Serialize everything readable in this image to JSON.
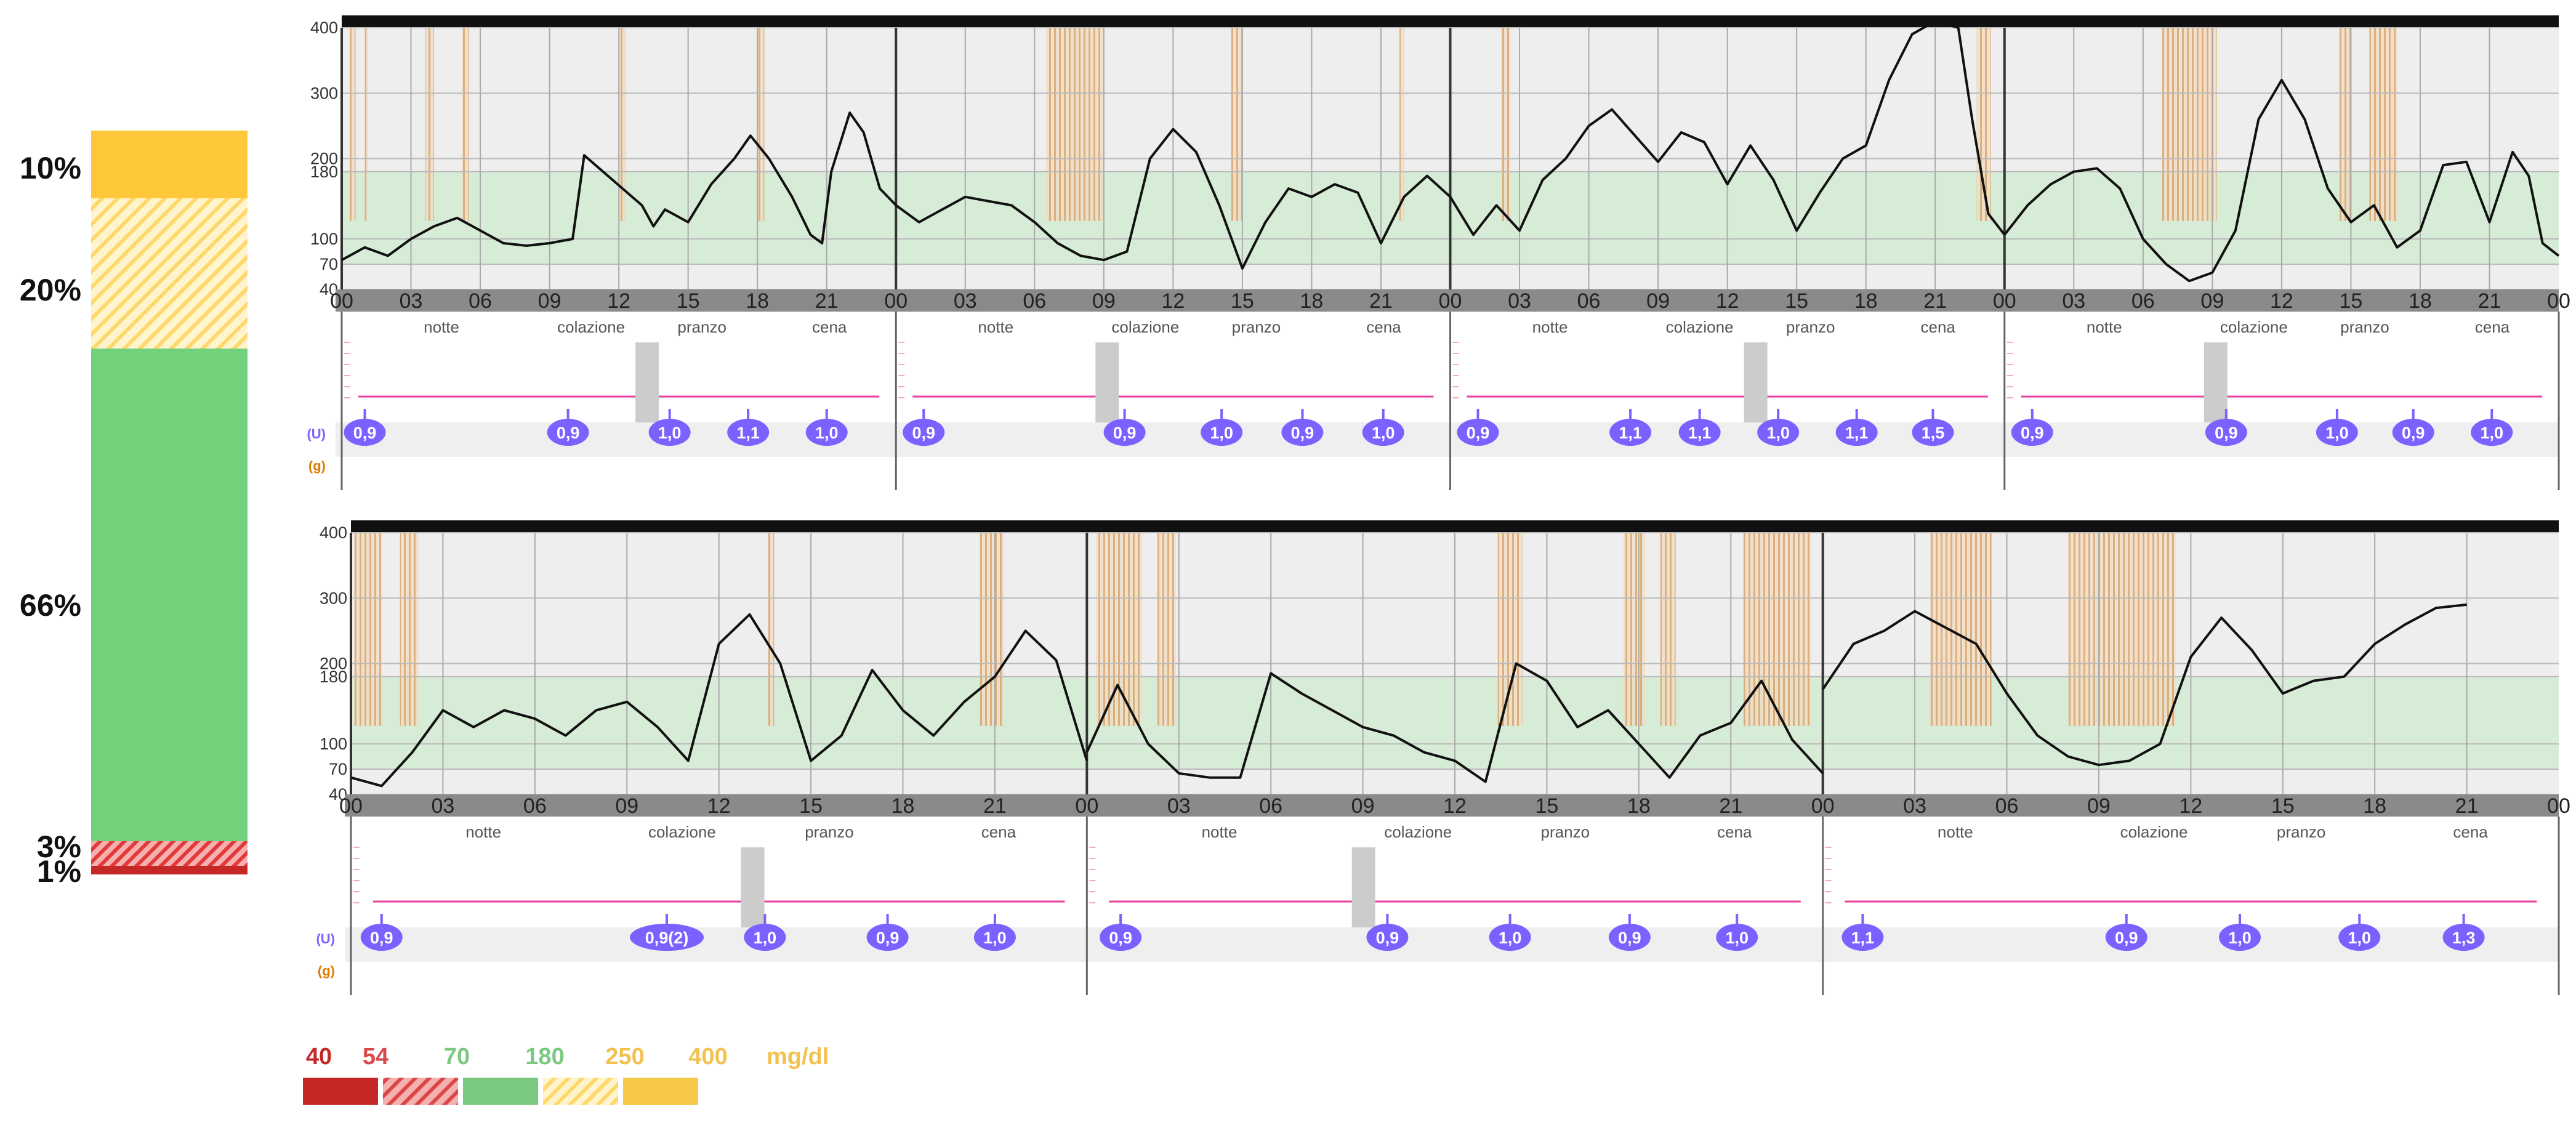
{
  "chart_data": {
    "type": "line",
    "y_ticks": [
      "400",
      "300",
      "200",
      "180",
      "100",
      "70",
      "40"
    ],
    "x_ticks": [
      "00",
      "03",
      "06",
      "09",
      "12",
      "15",
      "18",
      "21"
    ],
    "meal_labels": [
      "notte",
      "colazione",
      "pranzo",
      "cena"
    ],
    "insulin_unit_label": "(U)",
    "carb_unit_label": "(g)",
    "target_range": [
      70,
      180
    ],
    "summary_bar": [
      {
        "label": "10%",
        "range": "250-400",
        "color": "#FFC83A"
      },
      {
        "label": "20%",
        "range": "180-250",
        "color": "#FFE9A8"
      },
      {
        "label": "66%",
        "range": "70-180",
        "color": "#72D27C"
      },
      {
        "label": "3%",
        "range": "54-70",
        "color": "#E23A3A"
      },
      {
        "label": "1%",
        "range": "40-54",
        "color": "#C62828"
      }
    ],
    "legend": {
      "thresholds": [
        {
          "value": "40",
          "color": "#C62828"
        },
        {
          "value": "54",
          "color": "#D84848"
        },
        {
          "value": "70",
          "color": "#7BC97F"
        },
        {
          "value": "180",
          "color": "#7BC97F"
        },
        {
          "value": "250",
          "color": "#F2C14E"
        },
        {
          "value": "400",
          "color": "#F2C14E"
        }
      ],
      "unit": "mg/dl"
    },
    "panels": [
      {
        "days": [
          {
            "glucose": [
              [
                0,
                75
              ],
              [
                1,
                90
              ],
              [
                2,
                80
              ],
              [
                3,
                100
              ],
              [
                4,
                115
              ],
              [
                5,
                125
              ],
              [
                6,
                110
              ],
              [
                7,
                95
              ],
              [
                8,
                92
              ],
              [
                9,
                95
              ],
              [
                10,
                100
              ],
              [
                10.5,
                205
              ],
              [
                13,
                140
              ],
              [
                13.5,
                115
              ],
              [
                14,
                135
              ],
              [
                15,
                120
              ],
              [
                16,
                165
              ],
              [
                17,
                200
              ],
              [
                17.7,
                235
              ],
              [
                18.5,
                200
              ],
              [
                19.5,
                150
              ],
              [
                20.3,
                105
              ],
              [
                20.8,
                95
              ],
              [
                21.2,
                180
              ],
              [
                22,
                270
              ],
              [
                22.6,
                240
              ],
              [
                23.3,
                160
              ],
              [
                24,
                140
              ]
            ],
            "doses": [
              {
                "t": 1,
                "label": "0,9"
              },
              {
                "t": 9.8,
                "label": "0,9"
              },
              {
                "t": 14.2,
                "label": "1,0"
              },
              {
                "t": 17.6,
                "label": "1,1"
              },
              {
                "t": 21,
                "label": "1,0"
              }
            ]
          },
          {
            "glucose": [
              [
                0,
                140
              ],
              [
                1,
                120
              ],
              [
                2,
                135
              ],
              [
                3,
                150
              ],
              [
                4,
                145
              ],
              [
                5,
                140
              ],
              [
                6,
                120
              ],
              [
                7,
                95
              ],
              [
                8,
                80
              ],
              [
                9,
                75
              ],
              [
                10,
                85
              ],
              [
                11,
                200
              ],
              [
                12,
                245
              ],
              [
                13,
                210
              ],
              [
                14,
                140
              ],
              [
                15,
                65
              ],
              [
                16,
                120
              ],
              [
                17,
                160
              ],
              [
                18,
                150
              ],
              [
                19,
                165
              ],
              [
                20,
                155
              ],
              [
                21,
                95
              ],
              [
                22,
                150
              ],
              [
                23,
                175
              ],
              [
                24,
                150
              ]
            ],
            "doses": [
              {
                "t": 1.2,
                "label": "0,9"
              },
              {
                "t": 9.9,
                "label": "0,9"
              },
              {
                "t": 14.1,
                "label": "1,0"
              },
              {
                "t": 17.6,
                "label": "0,9"
              },
              {
                "t": 21.1,
                "label": "1,0"
              }
            ]
          },
          {
            "glucose": [
              [
                0,
                150
              ],
              [
                1,
                105
              ],
              [
                2,
                140
              ],
              [
                3,
                110
              ],
              [
                4,
                170
              ],
              [
                5,
                200
              ],
              [
                6,
                250
              ],
              [
                7,
                275
              ],
              [
                8,
                235
              ],
              [
                9,
                195
              ],
              [
                10,
                240
              ],
              [
                11,
                225
              ],
              [
                12,
                165
              ],
              [
                13,
                220
              ],
              [
                14,
                170
              ],
              [
                15,
                110
              ],
              [
                16,
                155
              ],
              [
                17,
                200
              ],
              [
                18,
                220
              ],
              [
                19,
                320
              ],
              [
                20,
                390
              ],
              [
                21,
                410
              ],
              [
                22,
                400
              ],
              [
                22.6,
                260
              ],
              [
                23.3,
                130
              ],
              [
                24,
                105
              ]
            ],
            "doses": [
              {
                "t": 1.2,
                "label": "0,9"
              },
              {
                "t": 7.8,
                "label": "1,1"
              },
              {
                "t": 10.8,
                "label": "1,1"
              },
              {
                "t": 14.2,
                "label": "1,0"
              },
              {
                "t": 17.6,
                "label": "1,1"
              },
              {
                "t": 20.9,
                "label": "1,5"
              }
            ]
          },
          {
            "glucose": [
              [
                0,
                105
              ],
              [
                1,
                140
              ],
              [
                2,
                165
              ],
              [
                3,
                180
              ],
              [
                4,
                185
              ],
              [
                5,
                160
              ],
              [
                6,
                100
              ],
              [
                7,
                70
              ],
              [
                8,
                50
              ],
              [
                9,
                60
              ],
              [
                10,
                110
              ],
              [
                11,
                260
              ],
              [
                12,
                320
              ],
              [
                13,
                260
              ],
              [
                14,
                160
              ],
              [
                15,
                120
              ],
              [
                16,
                140
              ],
              [
                17,
                90
              ],
              [
                18,
                110
              ],
              [
                19,
                190
              ],
              [
                20,
                195
              ],
              [
                21,
                120
              ],
              [
                22,
                210
              ],
              [
                22.7,
                175
              ],
              [
                23.3,
                95
              ],
              [
                24,
                80
              ]
            ],
            "doses": [
              {
                "t": 1.2,
                "label": "0,9"
              },
              {
                "t": 9.6,
                "label": "0,9"
              },
              {
                "t": 14.4,
                "label": "1,0"
              },
              {
                "t": 17.7,
                "label": "0,9"
              },
              {
                "t": 21.1,
                "label": "1,0"
              }
            ]
          }
        ]
      },
      {
        "days": [
          {
            "glucose": [
              [
                0,
                60
              ],
              [
                1,
                50
              ],
              [
                2,
                90
              ],
              [
                3,
                140
              ],
              [
                4,
                120
              ],
              [
                5,
                140
              ],
              [
                6,
                130
              ],
              [
                7,
                110
              ],
              [
                8,
                140
              ],
              [
                9,
                150
              ],
              [
                10,
                120
              ],
              [
                11,
                80
              ],
              [
                12,
                230
              ],
              [
                13,
                275
              ],
              [
                14,
                200
              ],
              [
                15,
                80
              ],
              [
                16,
                110
              ],
              [
                17,
                190
              ],
              [
                18,
                140
              ],
              [
                19,
                110
              ],
              [
                20,
                150
              ],
              [
                21,
                180
              ],
              [
                22,
                250
              ],
              [
                23,
                205
              ],
              [
                24,
                80
              ]
            ],
            "doses": [
              {
                "t": 1,
                "label": "0,9"
              },
              {
                "t": 10.3,
                "label": "0,9(2)"
              },
              {
                "t": 13.5,
                "label": "1,0"
              },
              {
                "t": 17.5,
                "label": "0,9"
              },
              {
                "t": 21,
                "label": "1,0"
              }
            ]
          },
          {
            "glucose": [
              [
                0,
                90
              ],
              [
                1,
                170
              ],
              [
                2,
                100
              ],
              [
                3,
                65
              ],
              [
                4,
                60
              ],
              [
                5,
                60
              ],
              [
                6,
                185
              ],
              [
                7,
                160
              ],
              [
                8,
                140
              ],
              [
                9,
                120
              ],
              [
                10,
                110
              ],
              [
                11,
                90
              ],
              [
                12,
                80
              ],
              [
                13,
                55
              ],
              [
                14,
                200
              ],
              [
                15,
                175
              ],
              [
                16,
                120
              ],
              [
                17,
                140
              ],
              [
                18,
                100
              ],
              [
                19,
                60
              ],
              [
                20,
                110
              ],
              [
                21,
                125
              ],
              [
                22,
                175
              ],
              [
                23,
                105
              ],
              [
                24,
                65
              ]
            ],
            "doses": [
              {
                "t": 1.1,
                "label": "0,9"
              },
              {
                "t": 9.8,
                "label": "0,9"
              },
              {
                "t": 13.8,
                "label": "1,0"
              },
              {
                "t": 17.7,
                "label": "0,9"
              },
              {
                "t": 21.2,
                "label": "1,0"
              }
            ]
          },
          {
            "glucose": [
              [
                0,
                165
              ],
              [
                1,
                230
              ],
              [
                2,
                250
              ],
              [
                3,
                280
              ],
              [
                4,
                255
              ],
              [
                5,
                230
              ],
              [
                6,
                160
              ],
              [
                7,
                110
              ],
              [
                8,
                85
              ],
              [
                9,
                75
              ],
              [
                10,
                80
              ],
              [
                11,
                100
              ],
              [
                12,
                210
              ],
              [
                13,
                270
              ],
              [
                14,
                220
              ],
              [
                15,
                160
              ],
              [
                16,
                175
              ],
              [
                17,
                180
              ],
              [
                18,
                230
              ],
              [
                19,
                260
              ],
              [
                20,
                285
              ],
              [
                21,
                290
              ]
            ],
            "doses": [
              {
                "t": 1.3,
                "label": "1,1"
              },
              {
                "t": 9.9,
                "label": "0,9"
              },
              {
                "t": 13.6,
                "label": "1,0"
              },
              {
                "t": 17.5,
                "label": "1,0"
              },
              {
                "t": 20.9,
                "label": "1,3"
              }
            ]
          }
        ]
      }
    ]
  },
  "colors": {
    "target_band": "#D7ECD7",
    "plot_bg": "#EEEEEE",
    "axis_bar": "#8A8A8A",
    "glucose_line": "#111111",
    "dose_marker": "#7B61FF",
    "meal_arrow": "#E83E9E",
    "carb_stripe": "#D9A066"
  }
}
